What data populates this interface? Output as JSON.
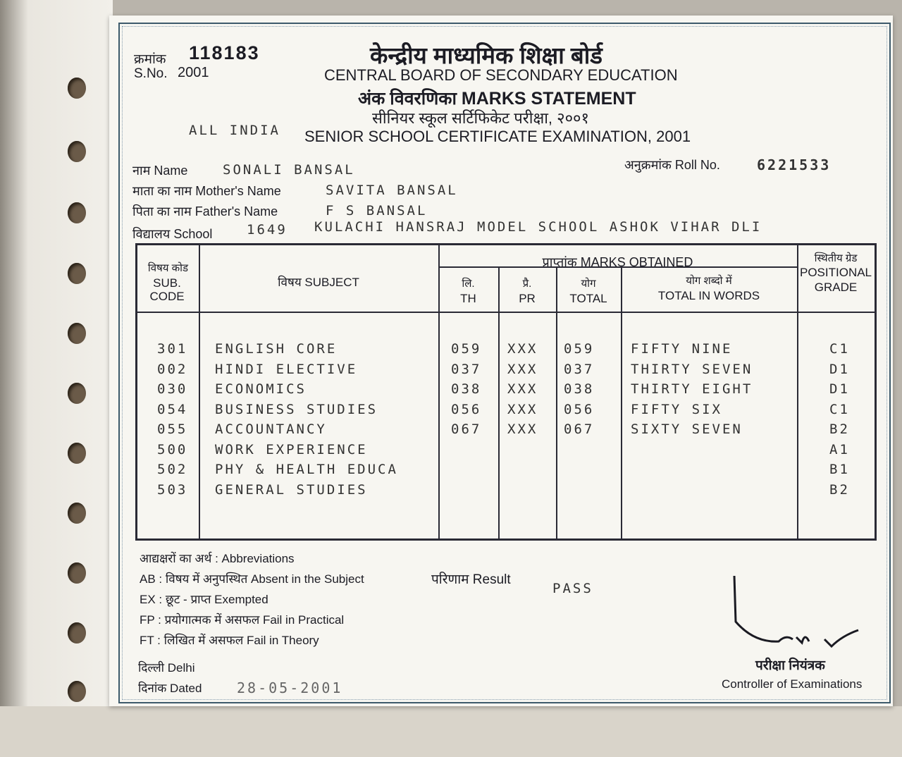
{
  "header": {
    "serial_label_hi": "क्रमांक",
    "serial_number": "118183",
    "sno_label": "S.No.",
    "sno_value": "2001",
    "board_hi": "केन्द्रीय माध्यमिक शिक्षा बोर्ड",
    "board_en": "CENTRAL BOARD OF SECONDARY EDUCATION",
    "statement": "अंक विवरणिका MARKS STATEMENT",
    "exam_hi": "सीनियर स्कूल सर्टिफिकेट परीक्षा, २००१",
    "exam_en": "SENIOR SCHOOL CERTIFICATE EXAMINATION, 2001",
    "region": "ALL INDIA"
  },
  "candidate": {
    "name_label": "नाम Name",
    "name": "SONALI BANSAL",
    "roll_label": "अनुक्रमांक Roll No.",
    "roll": "6221533",
    "mother_label": "माता का नाम Mother's Name",
    "mother": "SAVITA BANSAL",
    "father_label": "पिता का नाम Father's Name",
    "father": "F S BANSAL",
    "school_label": "विद्यालय School",
    "school_code": "1649",
    "school": "KULACHI HANSRAJ MODEL SCHOOL ASHOK VIHAR DLI"
  },
  "table": {
    "h_code_hi": "विषय कोड",
    "h_code": "SUB. CODE",
    "h_subject": "विषय SUBJECT",
    "h_marks": "प्राप्तांक   MARKS OBTAINED",
    "h_th_hi": "लि.",
    "h_th": "TH",
    "h_pr_hi": "प्रै.",
    "h_pr": "PR",
    "h_total_hi": "योग",
    "h_total": "TOTAL",
    "h_words_hi": "योग शब्दो में",
    "h_words": "TOTAL IN WORDS",
    "h_grade_hi": "स्थितीय ग्रेड",
    "h_grade": "POSITIONAL GRADE",
    "rows": [
      {
        "code": "301",
        "subject": "ENGLISH CORE",
        "th": "059",
        "pr": "XXX",
        "total": "059",
        "words": "FIFTY NINE",
        "grade": "C1"
      },
      {
        "code": "002",
        "subject": "HINDI ELECTIVE",
        "th": "037",
        "pr": "XXX",
        "total": "037",
        "words": "THIRTY SEVEN",
        "grade": "D1"
      },
      {
        "code": "030",
        "subject": "ECONOMICS",
        "th": "038",
        "pr": "XXX",
        "total": "038",
        "words": "THIRTY EIGHT",
        "grade": "D1"
      },
      {
        "code": "054",
        "subject": "BUSINESS STUDIES",
        "th": "056",
        "pr": "XXX",
        "total": "056",
        "words": "FIFTY SIX",
        "grade": "C1"
      },
      {
        "code": "055",
        "subject": "ACCOUNTANCY",
        "th": "067",
        "pr": "XXX",
        "total": "067",
        "words": "SIXTY SEVEN",
        "grade": "B2"
      },
      {
        "code": "500",
        "subject": "WORK EXPERIENCE",
        "th": "",
        "pr": "",
        "total": "",
        "words": "",
        "grade": "A1"
      },
      {
        "code": "502",
        "subject": "PHY & HEALTH EDUCA",
        "th": "",
        "pr": "",
        "total": "",
        "words": "",
        "grade": "B1"
      },
      {
        "code": "503",
        "subject": "GENERAL STUDIES",
        "th": "",
        "pr": "",
        "total": "",
        "words": "",
        "grade": "B2"
      }
    ]
  },
  "footer": {
    "abbr": [
      "आद्यक्षरों का अर्थ : Abbreviations",
      "AB : विषय में अनुपस्थित Absent in the Subject",
      "EX : छूट - प्राप्त Exempted",
      "FP : प्रयोगात्मक में असफल Fail in Practical",
      "FT : लिखित में असफल Fail in Theory"
    ],
    "result_label": "परिणाम  Result",
    "result": "PASS",
    "place": "दिल्ली Delhi",
    "date_label": "दिनांक Dated",
    "date": "28-05-2001",
    "controller_hi": "परीक्षा नियंत्रक",
    "controller_en": "Controller of Examinations"
  }
}
